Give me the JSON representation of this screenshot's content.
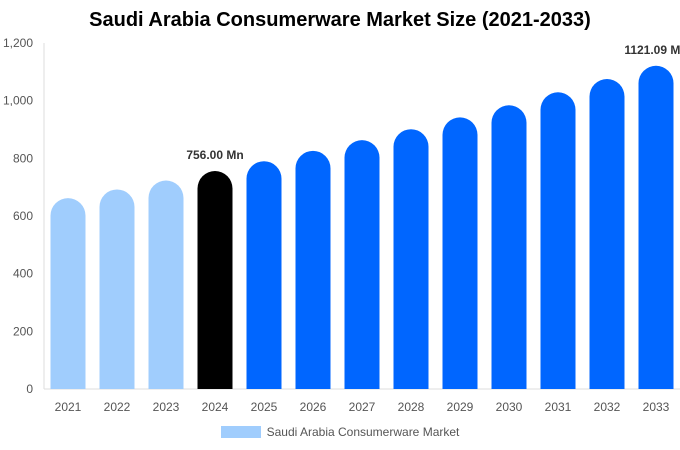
{
  "chart_data": {
    "type": "bar",
    "title": "Saudi Arabia Consumerware Market Size (2021-2033)",
    "categories": [
      "2021",
      "2022",
      "2023",
      "2024",
      "2025",
      "2026",
      "2027",
      "2028",
      "2029",
      "2030",
      "2031",
      "2032",
      "2033"
    ],
    "series": [
      {
        "name": "Saudi Arabia Consumerware Market",
        "values": [
          662,
          692,
          723,
          756.0,
          790,
          826,
          863,
          901,
          942,
          984,
          1029,
          1075,
          1121.09
        ]
      }
    ],
    "data_labels": {
      "2024": "756.00 Mn",
      "2033": "1121.09 Mn"
    },
    "ylim": [
      0,
      1200
    ],
    "yticks": [
      "0",
      "200",
      "400",
      "600",
      "800",
      "1,000",
      "1,200"
    ],
    "ytick_values": [
      0,
      200,
      400,
      600,
      800,
      1000,
      1200
    ],
    "grid": false,
    "legend": "bottom",
    "colors": {
      "historical": "#A0CDFD",
      "current": "#000000",
      "forecast": "#0066FF"
    }
  }
}
